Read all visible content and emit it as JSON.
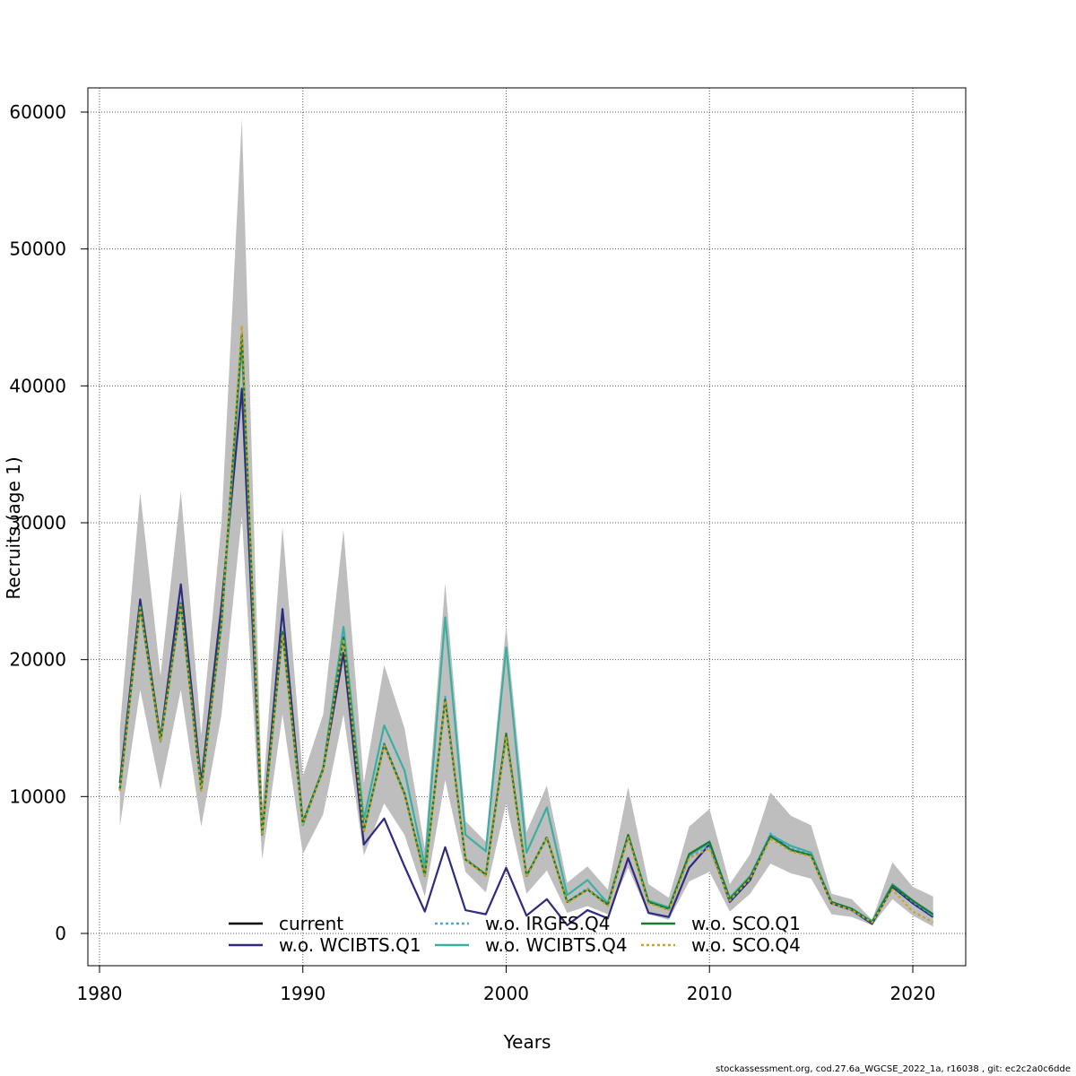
{
  "chart_data": {
    "type": "line",
    "xlabel": "Years",
    "ylabel": "Recruits (age 1)",
    "xlim": [
      1980,
      2022
    ],
    "ylim": [
      -2500,
      62000
    ],
    "xticks": [
      1980,
      1990,
      2000,
      2010,
      2020
    ],
    "yticks": [
      0,
      10000,
      20000,
      30000,
      40000,
      50000,
      60000
    ],
    "grid": true,
    "legend_position": "bottom-center",
    "x": [
      1981,
      1982,
      1983,
      1984,
      1985,
      1986,
      1987,
      1988,
      1989,
      1990,
      1991,
      1992,
      1993,
      1994,
      1995,
      1996,
      1997,
      1998,
      1999,
      2000,
      2001,
      2002,
      2003,
      2004,
      2005,
      2006,
      2007,
      2008,
      2009,
      2010,
      2011,
      2012,
      2013,
      2014,
      2015,
      2016,
      2017,
      2018,
      2019,
      2020,
      2021
    ],
    "band": {
      "color": "#bebebe",
      "lower": [
        7800,
        17800,
        10500,
        17800,
        7800,
        16000,
        30500,
        5400,
        16000,
        5800,
        8700,
        16000,
        5700,
        9500,
        7200,
        2700,
        11200,
        4500,
        3000,
        9500,
        2900,
        4600,
        1500,
        2000,
        1400,
        4800,
        1400,
        1000,
        3800,
        4500,
        1600,
        2900,
        5100,
        4400,
        4000,
        1400,
        1200,
        600,
        2500,
        1300,
        500
      ],
      "upper": [
        15000,
        32200,
        18800,
        32300,
        14500,
        30000,
        59500,
        9500,
        29700,
        11500,
        16000,
        29500,
        11000,
        19600,
        15000,
        6200,
        25600,
        8200,
        6700,
        22500,
        7400,
        10800,
        3700,
        4900,
        3200,
        10700,
        3600,
        2600,
        7800,
        9100,
        3600,
        5800,
        10300,
        8600,
        7900,
        2900,
        2500,
        1000,
        5200,
        3400,
        2700
      ]
    },
    "series": [
      {
        "name": "w.o. WCIBTS.Q1",
        "color": "#2e2a7f",
        "dash": "none",
        "values": [
          11000,
          24400,
          14200,
          25500,
          11000,
          24000,
          39800,
          7200,
          23700,
          8100,
          12000,
          20500,
          6500,
          8400,
          4900,
          1600,
          6300,
          1700,
          1400,
          4800,
          1300,
          2500,
          600,
          1700,
          1100,
          5500,
          1500,
          1200,
          4800,
          6500,
          2300,
          3900,
          7200,
          6100,
          5700,
          2200,
          1700,
          700,
          3400,
          2200,
          1200
        ]
      },
      {
        "name": "w.o. WCIBTS.Q4",
        "color": "#3aafa0",
        "dash": "none",
        "values": [
          10500,
          23800,
          14000,
          24000,
          10500,
          22500,
          43200,
          7200,
          22000,
          7900,
          12100,
          22400,
          8300,
          15200,
          11900,
          4900,
          23100,
          7200,
          6000,
          20900,
          5900,
          9200,
          2800,
          3900,
          2200,
          7200,
          2400,
          1900,
          5700,
          6600,
          2600,
          4200,
          7200,
          6400,
          5900,
          2300,
          1800,
          900,
          3600,
          2400,
          1300
        ]
      },
      {
        "name": "w.o. IRGFS.Q4",
        "color": "#4aa3df",
        "dash": "3,3",
        "values": [
          10600,
          23900,
          14100,
          24200,
          10600,
          22800,
          43600,
          7300,
          22200,
          8000,
          12000,
          21800,
          7600,
          13900,
          10300,
          4300,
          17300,
          5500,
          4300,
          14400,
          4200,
          7100,
          2300,
          3300,
          2100,
          7100,
          2300,
          1700,
          5600,
          6300,
          2400,
          4100,
          7300,
          6200,
          5800,
          2300,
          1700,
          800,
          3500,
          2300,
          1300
        ]
      },
      {
        "name": "w.o. SCO.Q1",
        "color": "#1a7a2e",
        "dash": "none",
        "values": [
          10500,
          23900,
          14100,
          24100,
          10500,
          22800,
          43800,
          7300,
          22000,
          8100,
          12000,
          21600,
          7500,
          13800,
          10200,
          4200,
          17100,
          5400,
          4300,
          14600,
          4200,
          7000,
          2300,
          3200,
          2100,
          7200,
          2300,
          1800,
          5800,
          6700,
          2500,
          4100,
          7100,
          6100,
          5700,
          2300,
          1800,
          800,
          3500,
          2400,
          1400
        ]
      },
      {
        "name": "w.o. SCO.Q4",
        "color": "#c9a227",
        "dash": "3,3",
        "values": [
          10400,
          23800,
          14000,
          24000,
          10400,
          22600,
          44400,
          7200,
          21800,
          8000,
          11900,
          21500,
          7400,
          13700,
          10100,
          4100,
          17000,
          5400,
          4200,
          14300,
          4100,
          7000,
          2200,
          3200,
          2000,
          7000,
          2200,
          1700,
          5500,
          6200,
          2400,
          4000,
          6900,
          6000,
          5600,
          2200,
          1700,
          800,
          3200,
          1600,
          800
        ]
      },
      {
        "name": "current",
        "color": "#000000",
        "dash": "none",
        "hide_line": true,
        "values": [
          10500,
          23900,
          14100,
          24100,
          10500,
          22700,
          43500,
          7300,
          22000,
          8000,
          12000,
          21600,
          7500,
          13800,
          10200,
          4200,
          17100,
          5400,
          4300,
          14500,
          4200,
          7000,
          2300,
          3200,
          2100,
          7100,
          2300,
          1700,
          5600,
          6400,
          2400,
          4100,
          7100,
          6100,
          5700,
          2300,
          1700,
          800,
          3400,
          2300,
          1200
        ]
      }
    ],
    "legend": [
      {
        "label": "current",
        "color": "#000000",
        "dash": "none"
      },
      {
        "label": "w.o. WCIBTS.Q1",
        "color": "#2e2a7f",
        "dash": "none"
      },
      {
        "label": "w.o. IRGFS.Q4",
        "color": "#4aa3df",
        "dash": "3,3"
      },
      {
        "label": "w.o. WCIBTS.Q4",
        "color": "#3aafa0",
        "dash": "none"
      },
      {
        "label": "w.o. SCO.Q1",
        "color": "#1a7a2e",
        "dash": "none"
      },
      {
        "label": "w.o. SCO.Q4",
        "color": "#c9a227",
        "dash": "3,3"
      }
    ]
  },
  "footer": "stockassessment.org, cod.27.6a_WGCSE_2022_1a, r16038 , git: ec2c2a0c6dde"
}
